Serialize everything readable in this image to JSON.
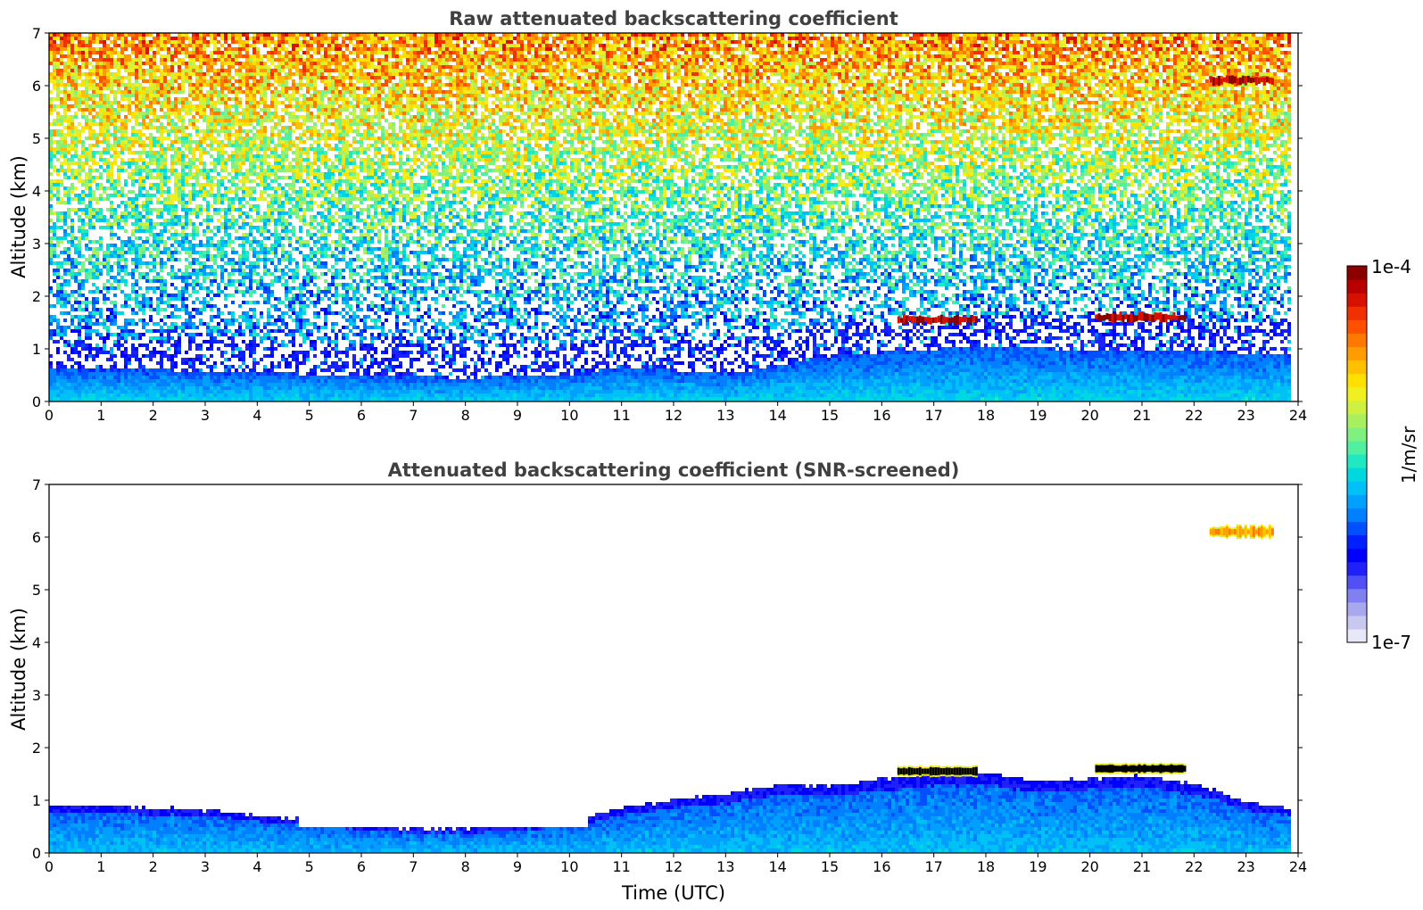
{
  "chart_data": [
    {
      "type": "heatmap",
      "title": "Raw attenuated backscattering coefficient",
      "xlabel": "",
      "ylabel": "Altitude (km)",
      "xlim": [
        0,
        24
      ],
      "ylim": [
        0,
        7
      ],
      "xticks": [
        "0",
        "1",
        "2",
        "3",
        "4",
        "5",
        "6",
        "7",
        "8",
        "9",
        "10",
        "11",
        "12",
        "13",
        "14",
        "15",
        "16",
        "17",
        "18",
        "19",
        "20",
        "21",
        "22",
        "23",
        "24"
      ],
      "yticks": [
        "0",
        "1",
        "2",
        "3",
        "4",
        "5",
        "6",
        "7"
      ],
      "noise": "speckle above boundary layer, increasing with altitude",
      "layers": [
        {
          "t0": 0,
          "t1": 24,
          "h_top": [
            [
              0,
              0.65
            ],
            [
              3,
              0.62
            ],
            [
              5,
              0.55
            ],
            [
              8,
              0.48
            ],
            [
              10,
              0.55
            ],
            [
              11,
              0.7
            ],
            [
              13,
              0.55
            ],
            [
              15,
              0.9
            ],
            [
              18,
              1.1
            ],
            [
              20,
              1.0
            ],
            [
              24,
              0.95
            ]
          ],
          "value": "high"
        },
        {
          "t0": 16.3,
          "t1": 17.8,
          "h": 1.55,
          "value": "max"
        },
        {
          "t0": 20.1,
          "t1": 21.8,
          "h": 1.6,
          "value": "max"
        },
        {
          "t0": 22.3,
          "t1": 23.5,
          "h": 6.1,
          "value": "max"
        }
      ]
    },
    {
      "type": "heatmap",
      "title": "Attenuated backscattering coefficient (SNR-screened)",
      "xlabel": "Time (UTC)",
      "ylabel": "Altitude (km)",
      "xlim": [
        0,
        24
      ],
      "ylim": [
        0,
        7
      ],
      "xticks": [
        "0",
        "1",
        "2",
        "3",
        "4",
        "5",
        "6",
        "7",
        "8",
        "9",
        "10",
        "11",
        "12",
        "13",
        "14",
        "15",
        "16",
        "17",
        "18",
        "19",
        "20",
        "21",
        "22",
        "23",
        "24"
      ],
      "yticks": [
        "0",
        "1",
        "2",
        "3",
        "4",
        "5",
        "6",
        "7"
      ],
      "boundary_layer_top": [
        [
          0,
          0.95
        ],
        [
          2,
          0.9
        ],
        [
          3,
          0.85
        ],
        [
          4,
          0.75
        ],
        [
          5,
          0.65
        ],
        [
          6,
          0.55
        ],
        [
          7,
          0.5
        ],
        [
          8,
          0.5
        ],
        [
          9,
          0.55
        ],
        [
          10,
          0.62
        ],
        [
          11,
          0.9
        ],
        [
          12,
          1.05
        ],
        [
          13,
          1.15
        ],
        [
          14,
          1.35
        ],
        [
          15,
          1.3
        ],
        [
          16,
          1.45
        ],
        [
          17,
          1.55
        ],
        [
          18,
          1.55
        ],
        [
          19,
          1.4
        ],
        [
          20,
          1.45
        ],
        [
          21,
          1.5
        ],
        [
          22,
          1.35
        ],
        [
          23,
          1.0
        ],
        [
          23.9,
          0.85
        ]
      ],
      "cloud_layers": [
        {
          "t0": 16.3,
          "t1": 17.8,
          "h": 1.55
        },
        {
          "t0": 20.1,
          "t1": 21.8,
          "h": 1.6
        },
        {
          "t0": 22.3,
          "t1": 23.5,
          "h": 6.1
        }
      ]
    }
  ],
  "colorbar": {
    "max_label": "1e-4",
    "min_label": "1e-7",
    "unit_label": "1/m/sr",
    "colors": [
      "#e8e8f8",
      "#c8c8f0",
      "#a8a8ee",
      "#8080f0",
      "#5050f4",
      "#2020f8",
      "#0000ff",
      "#0020ff",
      "#0050ff",
      "#0080ff",
      "#00a0ff",
      "#00c0f8",
      "#00d8e0",
      "#20e8c0",
      "#50f0a0",
      "#80f080",
      "#a8f060",
      "#d0f040",
      "#f0f020",
      "#ffe000",
      "#ffc000",
      "#ff9c00",
      "#ff7800",
      "#ff5000",
      "#f03000",
      "#d81000",
      "#b80000",
      "#8c0000"
    ]
  }
}
